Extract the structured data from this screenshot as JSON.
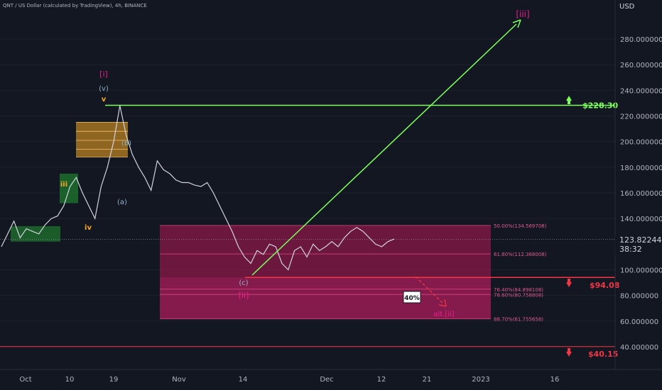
{
  "header": {
    "title": "QNT / US Dollar (calculated by TradingView), 4h, BINANCE",
    "currency": "USD"
  },
  "price_axis": {
    "ticks": [
      "280.000000",
      "260.000000",
      "240.000000",
      "220.000000",
      "200.000000",
      "180.000000",
      "160.000000",
      "140.000000",
      "100.000000",
      "80.000000",
      "60.000000",
      "40.000000"
    ],
    "current_price": "123.822445",
    "countdown": "38:32"
  },
  "time_axis": {
    "labels": [
      "Oct",
      "10",
      "19",
      "Nov",
      "14",
      "Dec",
      "12",
      "21",
      "2023",
      "16"
    ]
  },
  "levels": {
    "target": "$228.30",
    "support": "$94.08",
    "floor": "$40.15",
    "fib_50": "50.00%(134.569708)",
    "fib_618": "61.80%(112.368008)",
    "fib_764": "76.40%(84.898108)",
    "fib_786": "78.60%(80.758808)",
    "fib_887": "88.70%(61.755658)"
  },
  "wave_labels": {
    "w_i": "[i]",
    "w_v_sub": "(v)",
    "w_v": "v",
    "w_b": "(b)",
    "w_a": "(a)",
    "w_c": "(c)",
    "w_ii": "[ii]",
    "w_iii_small": "iii",
    "w_iv": "iv",
    "w_iii": "[iii]",
    "alt_ii": "alt.[ii]",
    "probability": "40%"
  },
  "colors": {
    "background": "#131722",
    "price_line": "#d1d4dc",
    "green": "#7cff5a",
    "red": "#f23645",
    "magenta_zone": "#8a1848",
    "orange": "#f5a623",
    "wave_pink": "#e91e8c",
    "wave_teal": "#8fb2c8"
  },
  "chart_data": {
    "type": "line",
    "title": "QNT / US Dollar (calculated by TradingView), 4h, BINANCE",
    "ylabel": "USD",
    "ylim": [
      30,
      305
    ],
    "x_labels": [
      "Oct",
      "10",
      "19",
      "Nov",
      "14",
      "Dec",
      "12",
      "21",
      "2023",
      "16"
    ],
    "series": [
      {
        "values": [
          118,
          128,
          138,
          125,
          132,
          130,
          128,
          135,
          140,
          142,
          150,
          165,
          172,
          160,
          150,
          140,
          165,
          180,
          200,
          228,
          205,
          190,
          180,
          172,
          162,
          185,
          178,
          175,
          170,
          168,
          168,
          166,
          165,
          168,
          160,
          150,
          140,
          130,
          118,
          110,
          105,
          115,
          112,
          120,
          118,
          105,
          100,
          115,
          118,
          110,
          120,
          115,
          118,
          122,
          118,
          125,
          130,
          133,
          130,
          125,
          120,
          118,
          122,
          124
        ]
      }
    ]
  }
}
